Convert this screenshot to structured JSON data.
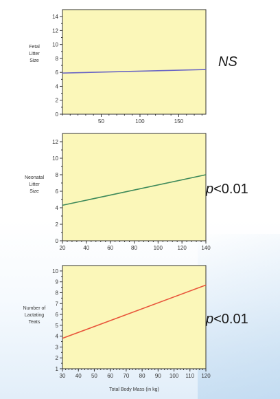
{
  "chart_data": [
    {
      "type": "line",
      "ylabel": "Fetal\nLitter\nSize",
      "xlabel": "",
      "xlim": [
        0,
        185
      ],
      "ylim": [
        0,
        15
      ],
      "xticks": [
        50,
        100,
        150
      ],
      "yticks": [
        0,
        2,
        4,
        6,
        8,
        10,
        12,
        14
      ],
      "grid": false,
      "significance": {
        "prefix": "NS",
        "suffix": ""
      },
      "series": [
        {
          "color": "#6a66c4",
          "x": [
            0,
            185
          ],
          "y": [
            5.9,
            6.4
          ]
        }
      ]
    },
    {
      "type": "line",
      "ylabel": "Neonatal\nLitter\nSize",
      "xlabel": "",
      "xlim": [
        20,
        140
      ],
      "ylim": [
        0,
        13
      ],
      "xticks": [
        20,
        40,
        60,
        80,
        100,
        120,
        140
      ],
      "yticks": [
        0,
        2,
        4,
        6,
        8,
        10,
        12
      ],
      "grid": false,
      "significance": {
        "prefix": "p",
        "suffix": "<0.01"
      },
      "series": [
        {
          "color": "#3e8a5a",
          "x": [
            20,
            140
          ],
          "y": [
            4.3,
            8.0
          ]
        }
      ]
    },
    {
      "type": "line",
      "ylabel": "Number of\nLactating\nTeats",
      "xlabel": "Total Body Mass (in kg)",
      "xlim": [
        30,
        120
      ],
      "ylim": [
        1,
        10.5
      ],
      "xticks": [
        30,
        40,
        50,
        60,
        70,
        80,
        90,
        100,
        110,
        120
      ],
      "yticks": [
        1,
        2,
        3,
        4,
        5,
        6,
        7,
        8,
        9,
        10
      ],
      "grid": false,
      "significance": {
        "prefix": "p",
        "suffix": "<0.01"
      },
      "series": [
        {
          "color": "#e8543a",
          "x": [
            30,
            120
          ],
          "y": [
            3.8,
            8.7
          ]
        }
      ]
    }
  ],
  "colors": {
    "plot_background": "#fbf7b9",
    "axis": "#333333"
  }
}
